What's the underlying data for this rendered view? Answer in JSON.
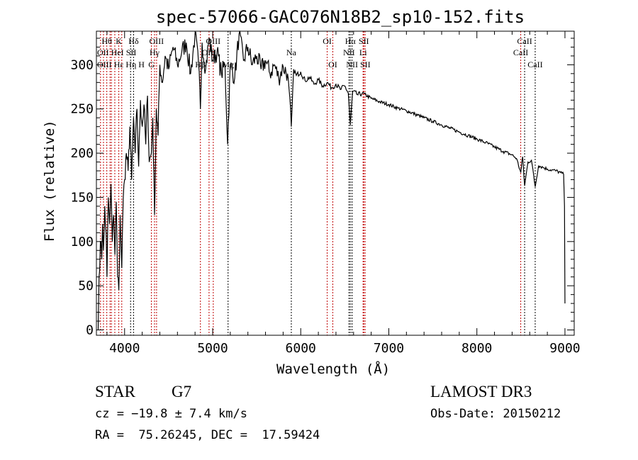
{
  "chart_data": {
    "type": "line",
    "title": "spec-57066-GAC076N18B2_sp10-152.fits",
    "xlabel": "Wavelength (Å)",
    "ylabel": "Flux (relative)",
    "xlim": [
      3680,
      9105
    ],
    "ylim": [
      -6,
      338
    ],
    "xticks": [
      4000,
      5000,
      6000,
      7000,
      8000,
      9000
    ],
    "yticks": [
      0,
      50,
      100,
      150,
      200,
      250,
      300
    ],
    "grid": false,
    "series": [
      {
        "name": "spectrum",
        "x": [
          3700,
          3710,
          3725,
          3740,
          3750,
          3760,
          3775,
          3790,
          3800,
          3815,
          3830,
          3845,
          3860,
          3875,
          3890,
          3905,
          3920,
          3934,
          3950,
          3968,
          3985,
          4000,
          4020,
          4040,
          4060,
          4080,
          4102,
          4120,
          4140,
          4160,
          4180,
          4200,
          4220,
          4240,
          4260,
          4280,
          4304,
          4320,
          4340,
          4360,
          4380,
          4400,
          4430,
          4460,
          4500,
          4550,
          4600,
          4650,
          4700,
          4750,
          4800,
          4840,
          4861,
          4880,
          4920,
          4960,
          5000,
          5050,
          5100,
          5140,
          5170,
          5200,
          5250,
          5300,
          5350,
          5400,
          5450,
          5500,
          5550,
          5600,
          5650,
          5700,
          5750,
          5800,
          5850,
          5893,
          5920,
          5950,
          6000,
          6050,
          6100,
          6150,
          6200,
          6250,
          6300,
          6350,
          6400,
          6450,
          6500,
          6540,
          6563,
          6590,
          6650,
          6700,
          6800,
          6900,
          7000,
          7100,
          7200,
          7300,
          7400,
          7500,
          7600,
          7700,
          7800,
          7900,
          8000,
          8100,
          8200,
          8300,
          8400,
          8450,
          8498,
          8520,
          8542,
          8580,
          8620,
          8662,
          8700,
          8750,
          8800,
          8850,
          8900,
          8950,
          8985,
          8995,
          9000
        ],
        "y": [
          0,
          60,
          100,
          80,
          120,
          90,
          140,
          110,
          60,
          150,
          120,
          165,
          100,
          130,
          85,
          145,
          60,
          45,
          130,
          70,
          150,
          170,
          200,
          180,
          230,
          170,
          240,
          200,
          250,
          185,
          260,
          230,
          255,
          210,
          265,
          190,
          200,
          240,
          130,
          250,
          220,
          300,
          280,
          310,
          295,
          320,
          300,
          315,
          325,
          290,
          335,
          300,
          250,
          325,
          295,
          330,
          305,
          315,
          290,
          300,
          210,
          300,
          285,
          335,
          305,
          320,
          300,
          310,
          295,
          305,
          290,
          300,
          285,
          298,
          290,
          230,
          295,
          288,
          292,
          282,
          286,
          278,
          283,
          276,
          280,
          274,
          278,
          272,
          276,
          268,
          232,
          270,
          266,
          268,
          262,
          258,
          255,
          251,
          248,
          244,
          240,
          236,
          232,
          228,
          224,
          220,
          216,
          212,
          207,
          202,
          198,
          194,
          178,
          196,
          163,
          190,
          192,
          162,
          186,
          184,
          182,
          181,
          180,
          178,
          176,
          140,
          30
        ]
      }
    ],
    "lines": [
      {
        "label": "Hθ",
        "wl": 3798,
        "row": 0,
        "color": "red"
      },
      {
        "label": "K",
        "wl": 3934,
        "row": 0,
        "color": "red"
      },
      {
        "label": "Hδ",
        "wl": 4102,
        "row": 0,
        "color": "black"
      },
      {
        "label": "OIII",
        "wl": 4363,
        "row": 0,
        "color": "red"
      },
      {
        "label": "OIII",
        "wl": 5007,
        "row": 0,
        "color": "red"
      },
      {
        "label": "OI",
        "wl": 6300,
        "row": 0,
        "color": "red"
      },
      {
        "label": "Hα",
        "wl": 6563,
        "row": 0,
        "color": "black"
      },
      {
        "label": "SII",
        "wl": 6716,
        "row": 0,
        "color": "red"
      },
      {
        "label": "CaII",
        "wl": 8542,
        "row": 0,
        "color": "black"
      },
      {
        "label": "OII",
        "wl": 3727,
        "row": 1,
        "color": "red"
      },
      {
        "label": "HeI",
        "wl": 3889,
        "row": 1,
        "color": "red"
      },
      {
        "label": "SII",
        "wl": 4068,
        "row": 1,
        "color": "black"
      },
      {
        "label": "Hγ",
        "wl": 4340,
        "row": 1,
        "color": "red"
      },
      {
        "label": "OIII",
        "wl": 4959,
        "row": 1,
        "color": "red"
      },
      {
        "label": "Na",
        "wl": 5893,
        "row": 1,
        "color": "black"
      },
      {
        "label": "NII",
        "wl": 6548,
        "row": 1,
        "color": "black"
      },
      {
        "label": "Li",
        "wl": 6708,
        "row": 1,
        "color": "red"
      },
      {
        "label": "CaII",
        "wl": 8498,
        "row": 1,
        "color": "red"
      },
      {
        "label": "OIII",
        "wl": 3760,
        "row": 2,
        "color": "red"
      },
      {
        "label": "Hε",
        "wl": 3835,
        "row": 2,
        "color": "red"
      },
      {
        "label": "Hη",
        "wl": 3850,
        "row": 2,
        "color": "red"
      },
      {
        "label": "H",
        "wl": 3968,
        "row": 2,
        "color": "red"
      },
      {
        "label": "G",
        "wl": 4304,
        "row": 2,
        "color": "red"
      },
      {
        "label": "Hβ",
        "wl": 4861,
        "row": 2,
        "color": "red"
      },
      {
        "label": "Mg",
        "wl": 5175,
        "row": 2,
        "color": "black"
      },
      {
        "label": "OI",
        "wl": 6364,
        "row": 2,
        "color": "red"
      },
      {
        "label": "NII",
        "wl": 6583,
        "row": 2,
        "color": "black"
      },
      {
        "label": "SII",
        "wl": 6731,
        "row": 2,
        "color": "red"
      },
      {
        "label": "CaII",
        "wl": 8662,
        "row": 2,
        "color": "black"
      }
    ]
  },
  "info": {
    "object_class": "STAR",
    "subclass": "G7",
    "cz": "cz = −19.8 ± 7.4 km/s",
    "radec": "RA =  75.26245, DEC =  17.59424",
    "survey": "LAMOST DR3",
    "obs_date": "Obs-Date: 20150212"
  }
}
